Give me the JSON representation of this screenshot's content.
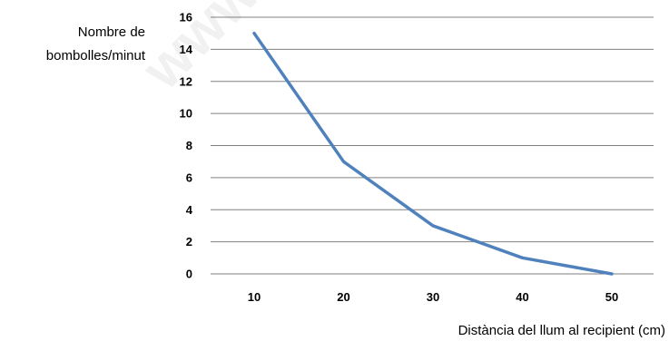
{
  "watermark": "www",
  "chart_data": {
    "type": "line",
    "title": "",
    "ylabel_lines": [
      "Nombre de",
      "bombolles/minut"
    ],
    "xlabel": "Distància del llum al recipient (cm)",
    "x": [
      10,
      20,
      30,
      40,
      50
    ],
    "x_tick_labels": [
      "10",
      "20",
      "30",
      "40",
      "50"
    ],
    "y_tick_labels": [
      "0",
      "2",
      "4",
      "6",
      "8",
      "10",
      "12",
      "14",
      "16"
    ],
    "ylim": [
      0,
      16
    ],
    "y_tick_step": 2,
    "grid": "horizontal",
    "legend": "none",
    "series": [
      {
        "values": [
          15,
          7,
          3,
          1,
          0
        ],
        "color": "#4F81BD"
      }
    ]
  }
}
